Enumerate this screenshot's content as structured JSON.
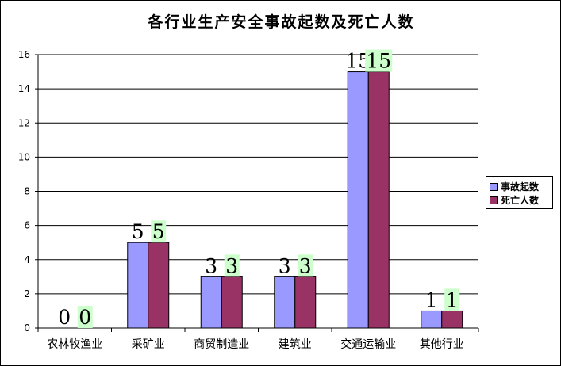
{
  "chart_data": {
    "type": "bar",
    "title": "各行业生产安全事故起数及死亡人数",
    "xlabel": "",
    "ylabel": "",
    "categories": [
      "农林牧渔业",
      "采矿业",
      "商贸制造业",
      "建筑业",
      "交通运输业",
      "其他行业"
    ],
    "series": [
      {
        "name": "事故起数",
        "values": [
          0,
          5,
          3,
          3,
          15,
          1
        ],
        "color": "#9999FF"
      },
      {
        "name": "死亡人数",
        "values": [
          0,
          5,
          3,
          3,
          15,
          1
        ],
        "color": "#993366"
      }
    ],
    "ylim": [
      0,
      16
    ],
    "yticks": [
      0,
      2,
      4,
      6,
      8,
      10,
      12,
      14,
      16
    ],
    "grid": true,
    "legend_position": "right",
    "data_labels": true,
    "data_label_highlight": "#CCFFCC"
  }
}
